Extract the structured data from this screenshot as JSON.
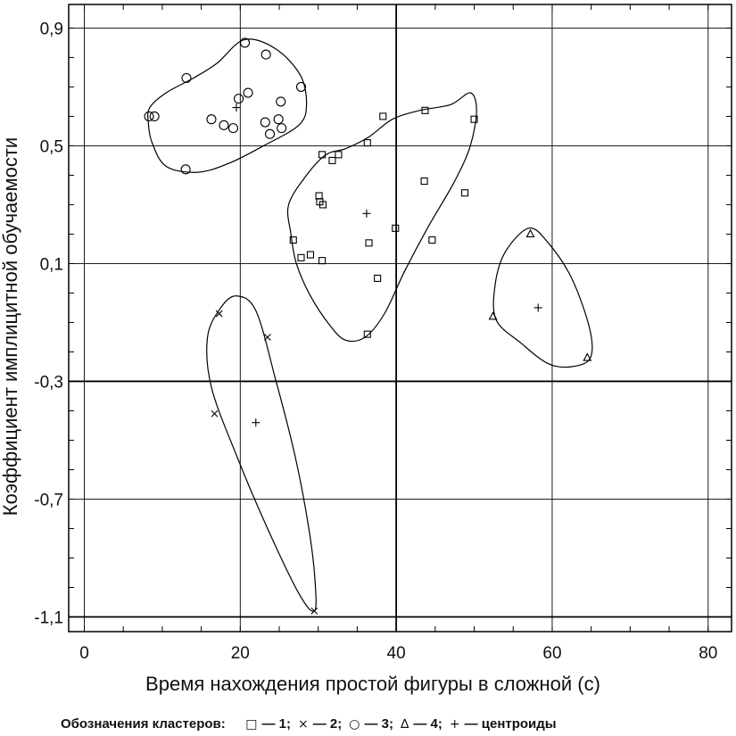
{
  "chart_data": {
    "type": "scatter",
    "xlabel": "Время нахождения простой фигуры в сложной (с)",
    "ylabel": "Коэффициент имплицитной обучаемости",
    "xlim": [
      -2,
      83
    ],
    "ylim": [
      -1.15,
      0.98
    ],
    "x_ticks": [
      0,
      20,
      40,
      60,
      80
    ],
    "x_tick_labels": [
      "0",
      "20",
      "40",
      "60",
      "80"
    ],
    "y_ticks": [
      0.9,
      0.5,
      0.1,
      -0.3,
      -0.7,
      -1.1
    ],
    "y_tick_labels": [
      "0,9",
      "0,5",
      "0,1",
      "-0,3",
      "-0,7",
      "-1,1"
    ],
    "grid": true,
    "legend": {
      "placement": "bottom",
      "title": "Обозначения кластеров:",
      "entries": [
        {
          "symbol": "□",
          "label": "— 1;"
        },
        {
          "symbol": "×",
          "label": "— 2;"
        },
        {
          "symbol": "○",
          "label": "— 3;"
        },
        {
          "symbol": "∆",
          "label": "— 4;"
        },
        {
          "symbol": "+",
          "label": "— центроиды"
        }
      ]
    },
    "series": [
      {
        "name": "1",
        "marker": "square",
        "points": [
          [
            30.5,
            0.47
          ],
          [
            31.8,
            0.45
          ],
          [
            32.6,
            0.47
          ],
          [
            36.3,
            0.51
          ],
          [
            38.3,
            0.6
          ],
          [
            43.7,
            0.62
          ],
          [
            50.0,
            0.59
          ],
          [
            43.6,
            0.38
          ],
          [
            48.8,
            0.34
          ],
          [
            30.1,
            0.33
          ],
          [
            30.2,
            0.31
          ],
          [
            30.6,
            0.3
          ],
          [
            39.9,
            0.22
          ],
          [
            44.6,
            0.18
          ],
          [
            26.8,
            0.18
          ],
          [
            36.5,
            0.17
          ],
          [
            29.0,
            0.13
          ],
          [
            27.8,
            0.12
          ],
          [
            30.5,
            0.11
          ],
          [
            37.6,
            0.05
          ],
          [
            36.3,
            -0.14
          ]
        ]
      },
      {
        "name": "2",
        "marker": "x",
        "points": [
          [
            17.3,
            -0.07
          ],
          [
            23.5,
            -0.15
          ],
          [
            16.7,
            -0.41
          ],
          [
            29.5,
            -1.08
          ]
        ]
      },
      {
        "name": "3",
        "marker": "circle",
        "points": [
          [
            20.6,
            0.85
          ],
          [
            23.3,
            0.81
          ],
          [
            13.1,
            0.73
          ],
          [
            27.8,
            0.7
          ],
          [
            21.0,
            0.68
          ],
          [
            19.8,
            0.66
          ],
          [
            25.2,
            0.65
          ],
          [
            8.3,
            0.6
          ],
          [
            9.0,
            0.6
          ],
          [
            16.3,
            0.59
          ],
          [
            17.9,
            0.57
          ],
          [
            19.1,
            0.56
          ],
          [
            23.2,
            0.58
          ],
          [
            24.9,
            0.59
          ],
          [
            25.3,
            0.56
          ],
          [
            23.8,
            0.54
          ],
          [
            13.0,
            0.42
          ]
        ]
      },
      {
        "name": "4",
        "marker": "triangle",
        "points": [
          [
            57.2,
            0.2
          ],
          [
            52.4,
            -0.08
          ],
          [
            64.5,
            -0.22
          ]
        ]
      },
      {
        "name": "центроиды",
        "marker": "plus",
        "points": [
          [
            19.5,
            0.63
          ],
          [
            36.2,
            0.27
          ],
          [
            58.2,
            -0.05
          ],
          [
            22.0,
            -0.44
          ]
        ]
      }
    ],
    "cluster_outlines": [
      {
        "cluster": "3",
        "points": [
          [
            8.4,
            0.63
          ],
          [
            10.5,
            0.68
          ],
          [
            14.0,
            0.73
          ],
          [
            17.0,
            0.78
          ],
          [
            20.5,
            0.86
          ],
          [
            24.5,
            0.83
          ],
          [
            27.7,
            0.74
          ],
          [
            28.5,
            0.64
          ],
          [
            27.5,
            0.57
          ],
          [
            23.0,
            0.5
          ],
          [
            18.5,
            0.44
          ],
          [
            14.5,
            0.41
          ],
          [
            10.5,
            0.43
          ],
          [
            8.7,
            0.51
          ],
          [
            8.2,
            0.58
          ]
        ]
      },
      {
        "cluster": "1",
        "points": [
          [
            26.5,
            0.2
          ],
          [
            26.2,
            0.3
          ],
          [
            28.5,
            0.4
          ],
          [
            31.0,
            0.47
          ],
          [
            33.5,
            0.49
          ],
          [
            36.5,
            0.53
          ],
          [
            39.5,
            0.59
          ],
          [
            43.0,
            0.62
          ],
          [
            47.0,
            0.64
          ],
          [
            49.5,
            0.68
          ],
          [
            50.3,
            0.62
          ],
          [
            49.5,
            0.5
          ],
          [
            47.5,
            0.38
          ],
          [
            44.0,
            0.22
          ],
          [
            41.0,
            0.07
          ],
          [
            38.5,
            -0.07
          ],
          [
            36.0,
            -0.15
          ],
          [
            33.5,
            -0.16
          ],
          [
            31.5,
            -0.11
          ],
          [
            29.0,
            -0.01
          ],
          [
            27.2,
            0.1
          ]
        ]
      },
      {
        "cluster": "4",
        "points": [
          [
            57.0,
            0.22
          ],
          [
            59.5,
            0.17
          ],
          [
            62.5,
            0.05
          ],
          [
            64.8,
            -0.12
          ],
          [
            64.9,
            -0.22
          ],
          [
            62.5,
            -0.25
          ],
          [
            59.5,
            -0.24
          ],
          [
            56.0,
            -0.17
          ],
          [
            52.8,
            -0.09
          ],
          [
            52.7,
            0.03
          ],
          [
            54.0,
            0.14
          ]
        ]
      },
      {
        "cluster": "2",
        "points": [
          [
            19.5,
            -0.01
          ],
          [
            22.0,
            -0.06
          ],
          [
            24.5,
            -0.29
          ],
          [
            27.0,
            -0.55
          ],
          [
            28.8,
            -0.8
          ],
          [
            29.6,
            -0.98
          ],
          [
            29.5,
            -1.08
          ],
          [
            27.5,
            -1.02
          ],
          [
            23.5,
            -0.8
          ],
          [
            19.5,
            -0.55
          ],
          [
            16.3,
            -0.32
          ],
          [
            15.8,
            -0.15
          ],
          [
            17.5,
            -0.05
          ]
        ]
      }
    ]
  }
}
